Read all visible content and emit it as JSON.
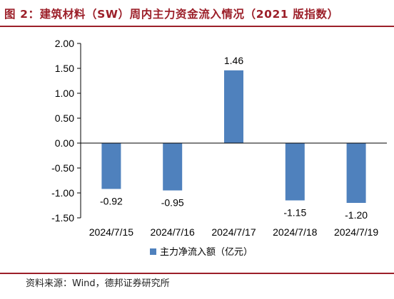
{
  "title": "图 2：建筑材料（SW）周内主力资金流入情况（2021 版指数）",
  "source": "资料来源：Wind，德邦证券研究所",
  "colors": {
    "accent": "#9c1f29",
    "bar": "#4f81bd"
  },
  "chart_data": {
    "type": "bar",
    "categories": [
      "2024/7/15",
      "2024/7/16",
      "2024/7/17",
      "2024/7/18",
      "2024/7/19"
    ],
    "series": [
      {
        "name": "主力净流入额（亿元）",
        "values": [
          -0.92,
          -0.95,
          1.46,
          -1.15,
          -1.2
        ]
      }
    ],
    "data_labels": [
      "-0.92",
      "-0.95",
      "1.46",
      "-1.15",
      "-1.20"
    ],
    "yticks": [
      "2.00",
      "1.50",
      "1.00",
      "0.50",
      "0.00",
      "-0.50",
      "-1.00",
      "-1.50"
    ],
    "ylim": [
      -1.5,
      2.0
    ],
    "legend_position": "bottom",
    "grid": false
  }
}
